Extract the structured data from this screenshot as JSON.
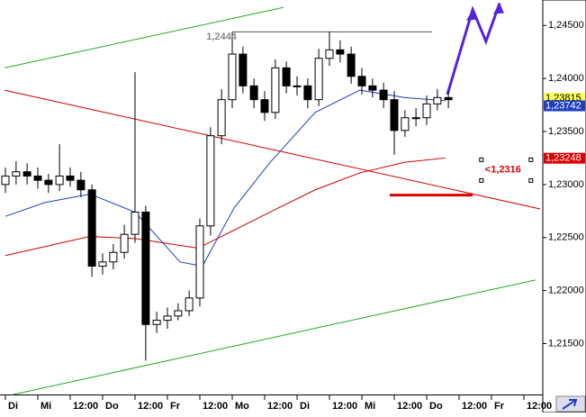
{
  "chart_data": {
    "type": "candlestick",
    "xlim": [
      -0.1667,
      16.5
    ],
    "ylim": [
      1.2102,
      1.2474
    ],
    "xticks": [
      {
        "value": 0,
        "label": "Di"
      },
      {
        "value": 1,
        "label": "Mi"
      },
      {
        "value": 2,
        "label": "12:00"
      },
      {
        "value": 3,
        "label": "Do"
      },
      {
        "value": 4,
        "label": "12:00"
      },
      {
        "value": 5,
        "label": "Fr"
      },
      {
        "value": 6,
        "label": "12:00"
      },
      {
        "value": 7,
        "label": "Mo"
      },
      {
        "value": 8,
        "label": "12:00"
      },
      {
        "value": 9,
        "label": "Di"
      },
      {
        "value": 10,
        "label": "12:00"
      },
      {
        "value": 11,
        "label": "Mi"
      },
      {
        "value": 12,
        "label": "12:00"
      },
      {
        "value": 13,
        "label": "Do"
      },
      {
        "value": 14,
        "label": "12:00"
      },
      {
        "value": 15,
        "label": "Fr"
      },
      {
        "value": 16,
        "label": "12:00"
      }
    ],
    "yticks": [
      {
        "value": 1.245,
        "label": "1,24500"
      },
      {
        "value": 1.24,
        "label": "1,24000"
      },
      {
        "value": 1.235,
        "label": "1,23500"
      },
      {
        "value": 1.23,
        "label": "1,23000"
      },
      {
        "value": 1.225,
        "label": "1,22500"
      },
      {
        "value": 1.22,
        "label": "1,22000"
      },
      {
        "value": 1.215,
        "label": "1,21500"
      }
    ],
    "x": [
      0,
      0.33,
      0.67,
      1,
      1.33,
      1.67,
      2,
      2.33,
      2.67,
      3,
      3.33,
      3.67,
      4,
      4.33,
      4.67,
      5,
      5.33,
      5.67,
      6,
      6.33,
      6.67,
      7,
      7.33,
      7.67,
      8,
      8.33,
      8.67,
      9,
      9.33,
      9.67,
      10,
      10.33,
      10.67,
      11,
      11.33,
      11.67,
      12,
      12.33,
      12.67,
      13,
      13.33,
      13.67
    ],
    "open": [
      1.23,
      1.2308,
      1.2312,
      1.2308,
      1.2304,
      1.23,
      1.2308,
      1.2304,
      1.2295,
      1.2223,
      1.2227,
      1.2236,
      1.2253,
      1.2274,
      1.2168,
      1.2172,
      1.2176,
      1.2181,
      1.2193,
      1.2261,
      1.2346,
      1.238,
      1.2423,
      1.2393,
      1.238,
      1.2368,
      1.241,
      1.2393,
      1.2393,
      1.238,
      1.2419,
      1.2427,
      1.2423,
      1.2402,
      1.2393,
      1.2389,
      1.238,
      1.2351,
      1.2363,
      1.2363,
      1.2376,
      1.2382
    ],
    "high": [
      1.2316,
      1.2322,
      1.232,
      1.2316,
      1.231,
      1.2338,
      1.2316,
      1.2312,
      1.23,
      1.2235,
      1.2244,
      1.2262,
      1.2406,
      1.228,
      1.218,
      1.2184,
      1.2188,
      1.22,
      1.2268,
      1.2354,
      1.239,
      1.2444,
      1.243,
      1.24,
      1.2388,
      1.2418,
      1.2416,
      1.2402,
      1.24,
      1.2428,
      1.2444,
      1.2436,
      1.243,
      1.241,
      1.24,
      1.2396,
      1.2388,
      1.237,
      1.2372,
      1.2384,
      1.239,
      1.2388
    ],
    "low": [
      1.2292,
      1.23,
      1.23,
      1.2296,
      1.2292,
      1.2294,
      1.2298,
      1.2288,
      1.2213,
      1.2215,
      1.222,
      1.223,
      1.2245,
      1.2134,
      1.216,
      1.2164,
      1.2172,
      1.2176,
      1.2185,
      1.2252,
      1.2338,
      1.2372,
      1.2386,
      1.2372,
      1.236,
      1.2362,
      1.2386,
      1.2384,
      1.2372,
      1.2374,
      1.2412,
      1.2415,
      1.2395,
      1.2385,
      1.2382,
      1.2372,
      1.2328,
      1.2345,
      1.2355,
      1.2356,
      1.237,
      1.2372
    ],
    "close": [
      1.2308,
      1.2312,
      1.2308,
      1.2304,
      1.23,
      1.2308,
      1.2304,
      1.2295,
      1.2223,
      1.2227,
      1.2236,
      1.2253,
      1.2274,
      1.2168,
      1.2172,
      1.2176,
      1.2181,
      1.2193,
      1.2261,
      1.2346,
      1.238,
      1.2423,
      1.2393,
      1.238,
      1.2368,
      1.241,
      1.2393,
      1.2393,
      1.238,
      1.2419,
      1.2427,
      1.2423,
      1.2402,
      1.2393,
      1.2389,
      1.238,
      1.2351,
      1.2363,
      1.2363,
      1.2376,
      1.2382,
      1.238
    ],
    "lines": [
      {
        "color": "#1f3fbf",
        "width": 1,
        "x": [
          0,
          1.22,
          2.61,
          4,
          5.39,
          6.08,
          7.06,
          8.17,
          9.56,
          10.94,
          12.33,
          13.58
        ],
        "values": [
          1.227,
          1.2283,
          1.2291,
          1.2274,
          1.2227,
          1.2223,
          1.2278,
          1.2321,
          1.2368,
          1.2389,
          1.2382,
          1.2379
        ]
      },
      {
        "color": "#cc0000",
        "width": 1,
        "x": [
          0,
          2.61,
          4,
          5.94,
          7.06,
          8.17,
          9.56,
          10.94,
          12.33,
          13.58
        ],
        "values": [
          1.2233,
          1.2251,
          1.2249,
          1.224,
          1.2257,
          1.2274,
          1.2295,
          1.2311,
          1.2321,
          1.2325
        ]
      },
      {
        "color": "#22aa22",
        "width": 1,
        "x": [
          -0.03,
          8.58
        ],
        "values": [
          1.241,
          1.2467
        ]
      },
      {
        "color": "#22aa22",
        "width": 1,
        "x": [
          0.25,
          16.36
        ],
        "values": [
          1.2102,
          1.221
        ]
      },
      {
        "color": "#cc0000",
        "width": 1,
        "x": [
          -0.03,
          16.5
        ],
        "values": [
          1.2389,
          1.2277
        ]
      },
      {
        "color": "#555555",
        "width": 1,
        "x": [
          7.0,
          13.17
        ],
        "values": [
          1.2444,
          1.2444
        ]
      },
      {
        "color": "#e00000",
        "width": 3,
        "x": [
          11.86,
          14.42
        ],
        "values": [
          1.229,
          1.229
        ]
      },
      {
        "color": "#5522dd",
        "width": 3,
        "x": [
          13.64,
          14.42,
          14.83,
          15.25
        ],
        "values": [
          1.2385,
          1.2465,
          1.2435,
          1.2471
        ]
      }
    ],
    "annotations": [
      {
        "text": "1,2444",
        "x": 6.2,
        "y": 1.2439,
        "color": "#888888"
      },
      {
        "text": "<1,2316",
        "x": 14.8,
        "y": 1.2314,
        "color": "#e00000"
      }
    ],
    "price_markers": [
      {
        "value": 1.23815,
        "label": "1,23815",
        "color": "#ffff55",
        "text_color": "#000000"
      },
      {
        "value": 1.23742,
        "label": "1,23742",
        "color": "#1f3fbf",
        "text_color": "#ffffff"
      },
      {
        "value": 1.23248,
        "label": "1,23248",
        "color": "#dd0000",
        "text_color": "#ffffff"
      }
    ]
  }
}
